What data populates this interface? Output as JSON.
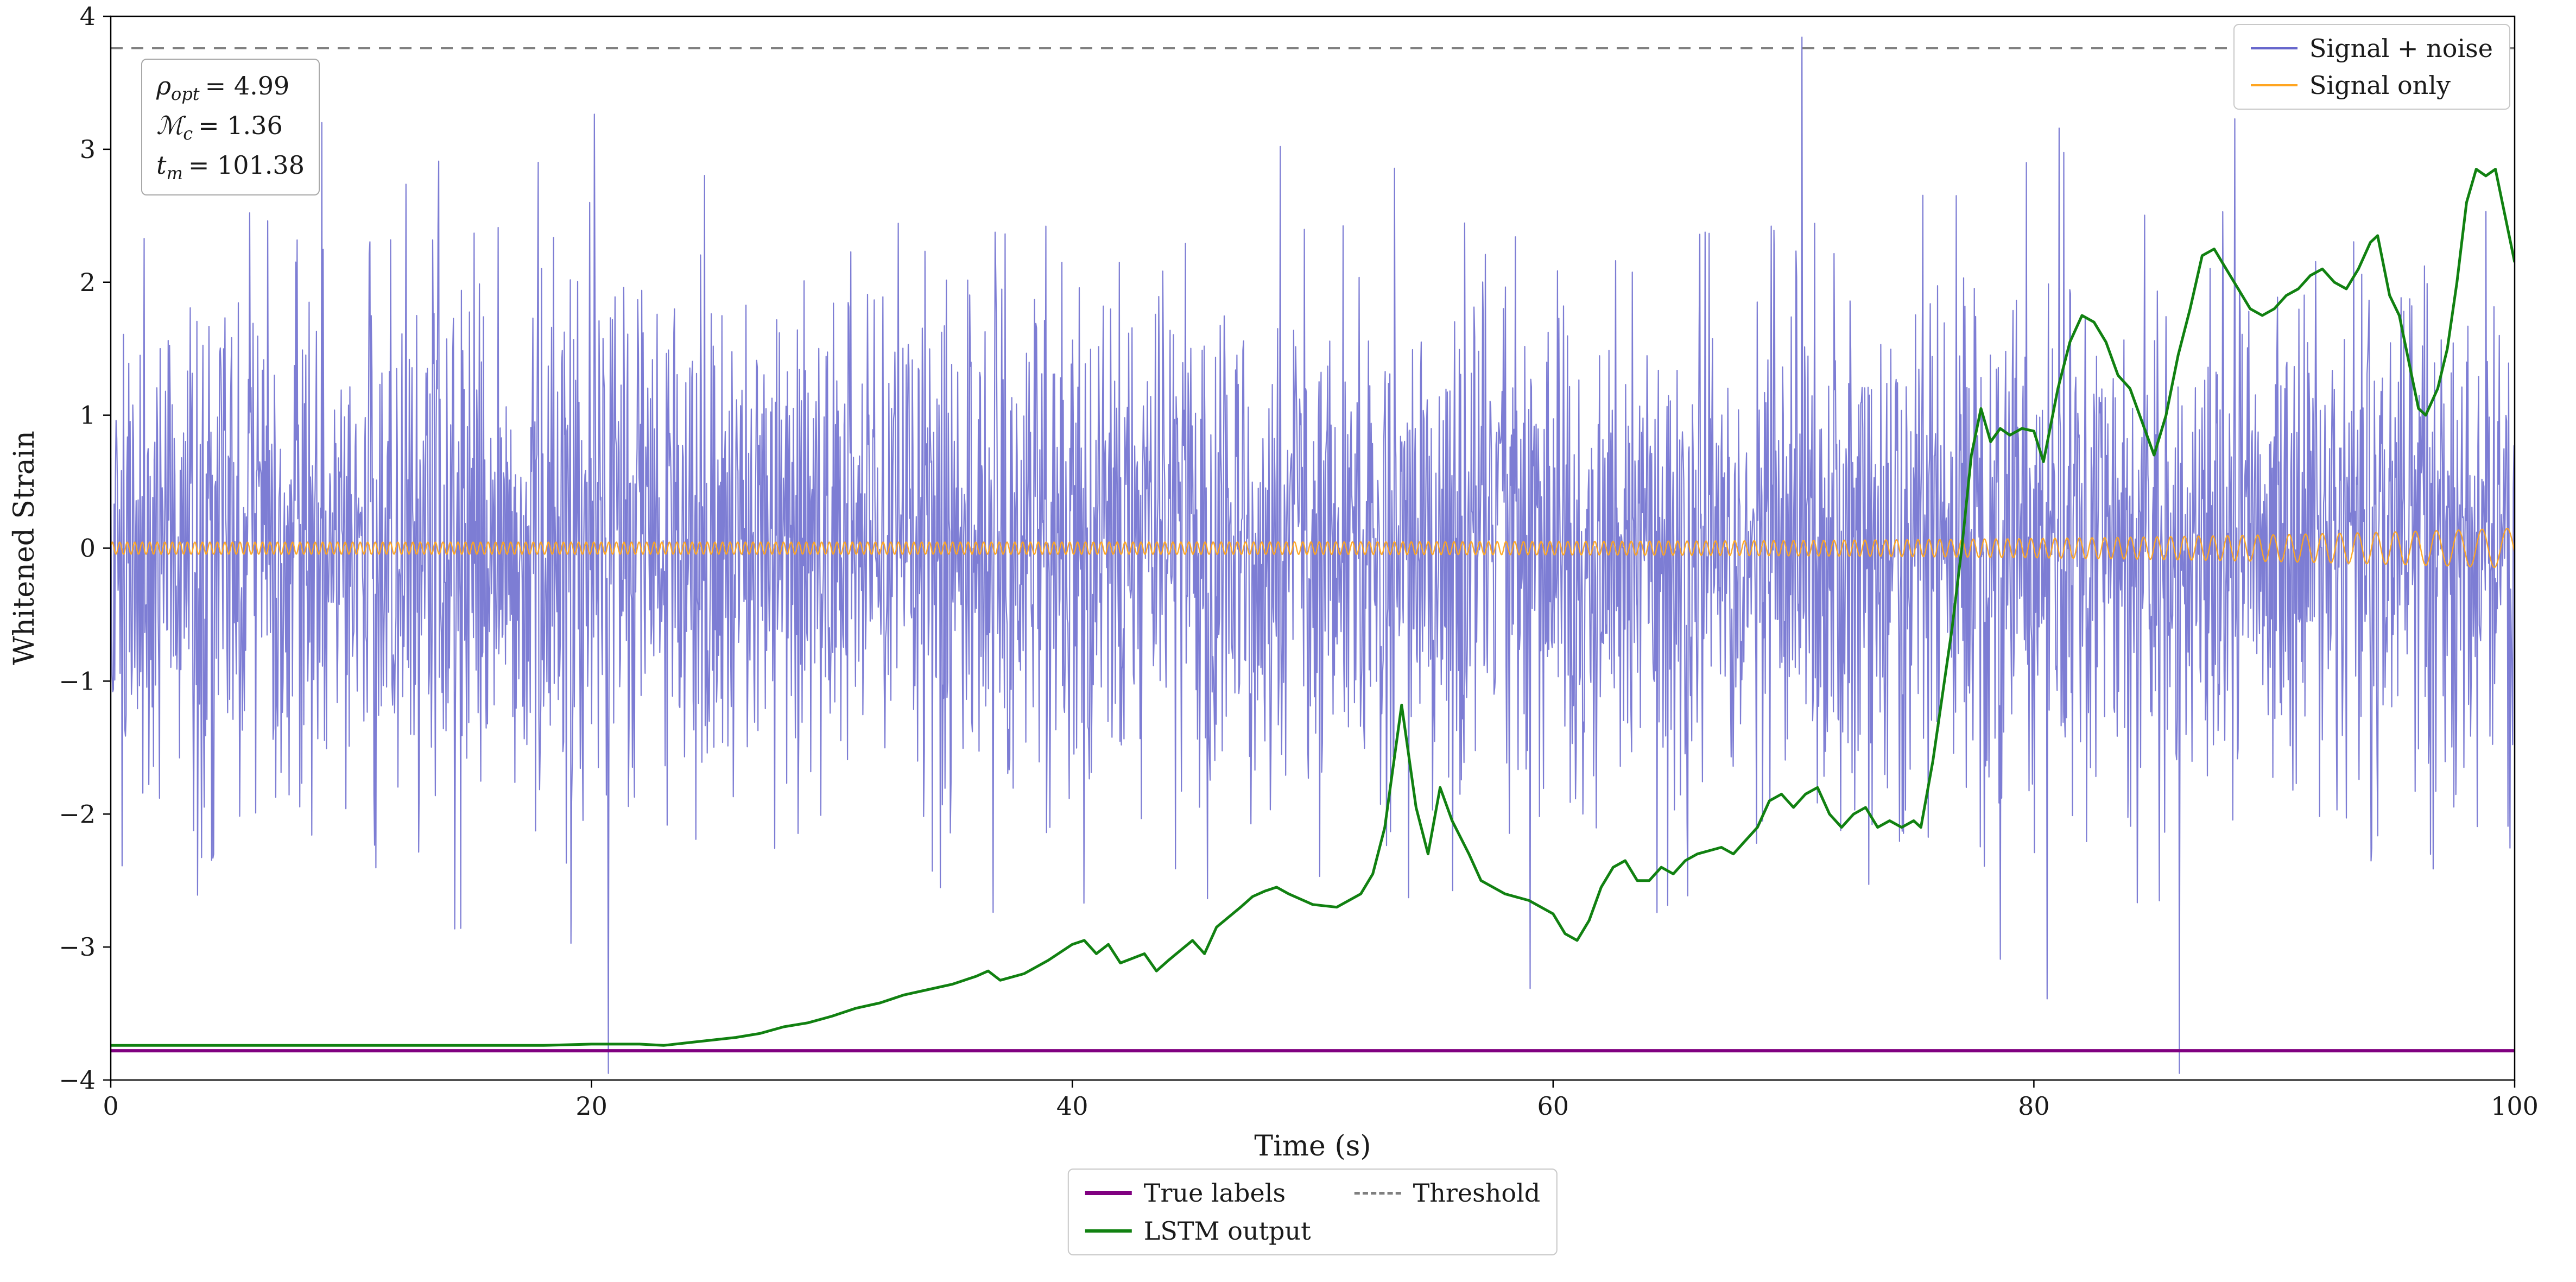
{
  "figure": {
    "background": "#ffffff",
    "spine_color": "#000000"
  },
  "annotation": {
    "lines": [
      {
        "sym": "ρ",
        "sub": "opt",
        "val": "= 4.99"
      },
      {
        "sym": "ℳ",
        "sub": "c",
        "val": "= 1.36"
      },
      {
        "sym": "t",
        "sub": "m",
        "val": "= 101.38"
      }
    ]
  },
  "legend_top": {
    "items": [
      {
        "label": "Signal + noise",
        "color": "#6666cc"
      },
      {
        "label": "Signal only",
        "color": "#ffa520"
      }
    ]
  },
  "legend_bottom": {
    "items": [
      {
        "label": "True labels",
        "color": "#800080"
      },
      {
        "label": "LSTM output",
        "color": "#118111"
      },
      {
        "label": "Threshold",
        "color": "#7f7f7f"
      }
    ]
  },
  "chart_data": {
    "type": "line",
    "title": "",
    "xlabel": "Time (s)",
    "ylabel": "Whitened Strain",
    "xlim": [
      0,
      100
    ],
    "ylim": [
      -4,
      4
    ],
    "xticks": [
      0,
      20,
      40,
      60,
      80,
      100
    ],
    "yticks": [
      -4,
      -3,
      -2,
      -1,
      0,
      1,
      2,
      3,
      4
    ],
    "grid": false,
    "legend_position": [
      "upper right inside",
      "below axes center"
    ],
    "series": [
      {
        "name": "Signal + noise",
        "type": "noise",
        "color": "#6666cc",
        "opacity": 0.85,
        "linewidth": 2.2,
        "mean": 0,
        "std": 1.0,
        "clip": 3.95,
        "points": 3600,
        "seed": 1337
      },
      {
        "name": "Signal only",
        "type": "chirp",
        "color": "#ffa520",
        "opacity": 0.95,
        "linewidth": 2.4,
        "points": 6000,
        "base_amp": 0.045,
        "amp_growth": 0.105,
        "amp_power": 6,
        "freq_start_hz": 3.2,
        "freq_end_factor": 2.3,
        "merger_time": 101.38
      },
      {
        "name": "Threshold",
        "type": "hline",
        "y": 3.76,
        "color": "#7f7f7f",
        "linewidth": 3.5,
        "dash": [
          22,
          16
        ]
      },
      {
        "name": "LSTM output",
        "type": "xy",
        "color": "#118111",
        "linewidth": 5,
        "x": [
          0,
          2,
          4,
          6,
          8,
          10,
          12,
          14,
          16,
          18,
          20,
          21,
          22,
          23,
          24,
          25,
          26,
          27,
          28,
          29,
          30,
          31,
          32,
          33,
          34,
          35,
          36,
          36.5,
          37,
          38,
          39,
          40,
          40.5,
          41,
          41.5,
          42,
          43,
          43.5,
          44,
          45,
          45.5,
          46,
          47,
          47.5,
          48,
          48.5,
          49,
          50,
          51,
          52,
          52.5,
          53,
          53.7,
          54.3,
          54.8,
          55.3,
          55.8,
          56.5,
          57,
          58,
          59,
          60,
          60.5,
          61,
          61.5,
          62,
          62.5,
          63,
          63.5,
          64,
          64.5,
          65,
          65.5,
          66,
          67,
          67.5,
          68,
          68.5,
          69,
          69.5,
          70,
          70.5,
          71,
          71.5,
          72,
          72.5,
          73,
          73.5,
          74,
          74.5,
          75,
          75.3,
          75.8,
          76.2,
          76.6,
          77,
          77.4,
          77.8,
          78.2,
          78.6,
          79,
          79.5,
          80,
          80.4,
          81,
          81.5,
          82,
          82.5,
          83,
          83.5,
          84,
          84.5,
          85,
          85.5,
          86,
          86.5,
          87,
          87.5,
          88,
          88.5,
          89,
          89.5,
          90,
          90.5,
          91,
          91.5,
          92,
          92.5,
          93,
          93.5,
          94,
          94.3,
          94.8,
          95.2,
          95.6,
          96,
          96.3,
          96.8,
          97.2,
          97.6,
          98,
          98.4,
          98.8,
          99.2,
          99.6,
          100
        ],
        "y": [
          -3.74,
          -3.74,
          -3.74,
          -3.74,
          -3.74,
          -3.74,
          -3.74,
          -3.74,
          -3.74,
          -3.74,
          -3.73,
          -3.73,
          -3.73,
          -3.74,
          -3.72,
          -3.7,
          -3.68,
          -3.65,
          -3.6,
          -3.57,
          -3.52,
          -3.46,
          -3.42,
          -3.36,
          -3.32,
          -3.28,
          -3.22,
          -3.18,
          -3.25,
          -3.2,
          -3.1,
          -2.98,
          -2.95,
          -3.05,
          -2.98,
          -3.12,
          -3.05,
          -3.18,
          -3.1,
          -2.95,
          -3.05,
          -2.85,
          -2.7,
          -2.62,
          -2.58,
          -2.55,
          -2.6,
          -2.68,
          -2.7,
          -2.6,
          -2.45,
          -2.1,
          -1.18,
          -1.95,
          -2.3,
          -1.8,
          -2.05,
          -2.3,
          -2.5,
          -2.6,
          -2.65,
          -2.75,
          -2.9,
          -2.95,
          -2.8,
          -2.55,
          -2.4,
          -2.35,
          -2.5,
          -2.5,
          -2.4,
          -2.45,
          -2.35,
          -2.3,
          -2.25,
          -2.3,
          -2.2,
          -2.1,
          -1.9,
          -1.85,
          -1.95,
          -1.85,
          -1.8,
          -2.0,
          -2.1,
          -2.0,
          -1.95,
          -2.1,
          -2.05,
          -2.1,
          -2.05,
          -2.1,
          -1.6,
          -1.1,
          -0.6,
          0.0,
          0.7,
          1.05,
          0.8,
          0.9,
          0.85,
          0.9,
          0.88,
          0.65,
          1.2,
          1.55,
          1.75,
          1.7,
          1.55,
          1.3,
          1.2,
          0.95,
          0.7,
          1.0,
          1.45,
          1.8,
          2.2,
          2.25,
          2.1,
          1.95,
          1.8,
          1.75,
          1.8,
          1.9,
          1.95,
          2.05,
          2.1,
          2.0,
          1.95,
          2.1,
          2.3,
          2.35,
          1.9,
          1.75,
          1.4,
          1.05,
          1.0,
          1.2,
          1.5,
          2.0,
          2.6,
          2.85,
          2.8,
          2.85,
          2.5,
          2.15
        ]
      },
      {
        "name": "True labels",
        "type": "hline",
        "y": -3.78,
        "color": "#800080",
        "linewidth": 6,
        "dash": null
      }
    ]
  }
}
